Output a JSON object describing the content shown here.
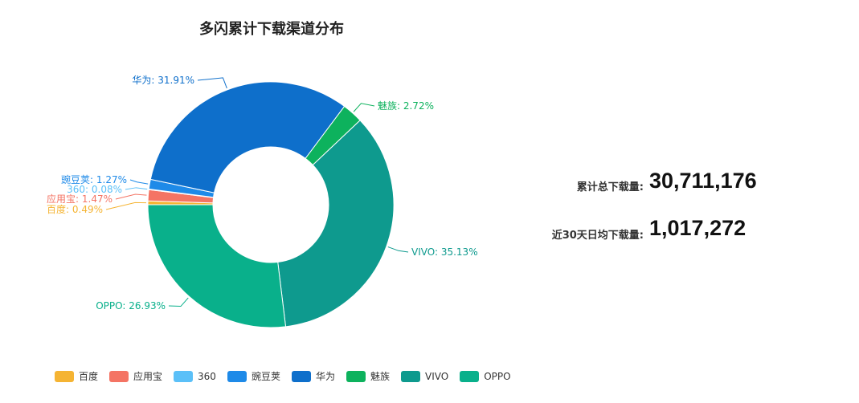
{
  "chart_data": {
    "type": "pie",
    "title": "多闪累计下载渠道分布",
    "categories": [
      "百度",
      "应用宝",
      "360",
      "豌豆荚",
      "华为",
      "魅族",
      "VIVO",
      "OPPO"
    ],
    "values": [
      0.49,
      1.47,
      0.08,
      1.27,
      31.91,
      2.72,
      35.13,
      26.93
    ],
    "value_unit": "%",
    "colors": [
      "#f5b433",
      "#f47464",
      "#5bc0f8",
      "#1e8ae8",
      "#0e6fcb",
      "#0db25d",
      "#0e9a8e",
      "#09b08b"
    ],
    "data_labels": [
      "百度: 0.49%",
      "应用宝: 1.47%",
      "360: 0.08%",
      "豌豆荚: 1.27%",
      "华为: 31.91%",
      "魅族: 2.72%",
      "VIVO: 35.13%",
      "OPPO: 26.93%"
    ],
    "legend_position": "bottom-left"
  },
  "stats": {
    "total_label": "累计总下载量:",
    "total_value": "30,711,176",
    "daily_label": "近30天日均下载量:",
    "daily_value": "1,017,272"
  }
}
